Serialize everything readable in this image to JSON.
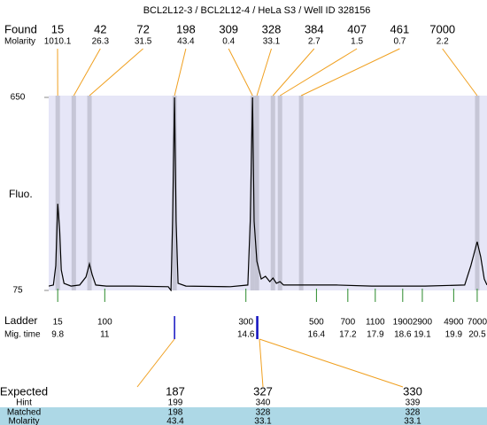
{
  "title": "BCL2L12-3 / BCL2L12-4 / HeLa S3 / Well ID 328156",
  "found_label": "Found",
  "molarity_label": "Molarity",
  "chart_data": {
    "type": "line",
    "ylabel": "Fluo.",
    "ylim": [
      75,
      650
    ],
    "yticks": [
      75,
      650
    ],
    "xlim": [
      9.57,
      20.75
    ],
    "color": "#000000",
    "x": [
      9.57,
      9.69,
      9.75,
      9.8,
      9.85,
      9.89,
      9.96,
      10.14,
      10.36,
      10.52,
      10.61,
      10.68,
      10.77,
      11.04,
      11.72,
      12.62,
      12.69,
      12.73,
      12.78,
      12.82,
      12.87,
      13.07,
      14.2,
      14.65,
      14.71,
      14.77,
      14.81,
      14.88,
      14.99,
      15.1,
      15.21,
      15.29,
      15.38,
      15.47,
      15.56,
      16.01,
      16.91,
      17.81,
      19.17,
      20.18,
      20.34,
      20.5,
      20.59,
      20.68,
      20.75
    ],
    "values": [
      88,
      91,
      149,
      333,
      254,
      136,
      96,
      88,
      91,
      115,
      154,
      122,
      91,
      88,
      88,
      86,
      75,
      281,
      650,
      281,
      96,
      88,
      86,
      91,
      281,
      650,
      281,
      162,
      109,
      117,
      101,
      112,
      96,
      101,
      91,
      91,
      91,
      88,
      88,
      91,
      149,
      220,
      175,
      109,
      91
    ],
    "peaks": {
      "sizes": [
        15,
        42,
        72,
        198,
        309,
        328,
        384,
        407,
        461,
        7000
      ],
      "molarity": [
        1010.1,
        26.3,
        31.5,
        43.4,
        0.4,
        33.1,
        2.7,
        1.5,
        0.7,
        2.2
      ],
      "times": [
        9.8,
        10.21,
        10.61,
        12.78,
        14.77,
        14.88,
        15.29,
        15.47,
        16.01,
        20.5
      ]
    },
    "ladder": {
      "label": "Ladder",
      "time_label": "Mig. time",
      "sizes": [
        15,
        100,
        300,
        500,
        700,
        1100,
        1900,
        2900,
        4900,
        7000
      ],
      "times": [
        9.8,
        11,
        14.6,
        16.4,
        17.2,
        17.9,
        18.6,
        19.1,
        19.9,
        20.5
      ]
    },
    "expected_markers": [
      12.78,
      14.89
    ]
  },
  "expected_table": {
    "row_labels": [
      "Expected",
      "Hint",
      "Matched",
      "Molarity"
    ],
    "columns": [
      [
        187,
        199,
        198,
        43.4
      ],
      [
        327,
        340,
        328,
        33.1
      ],
      [
        330,
        339,
        328,
        33.1
      ]
    ]
  }
}
